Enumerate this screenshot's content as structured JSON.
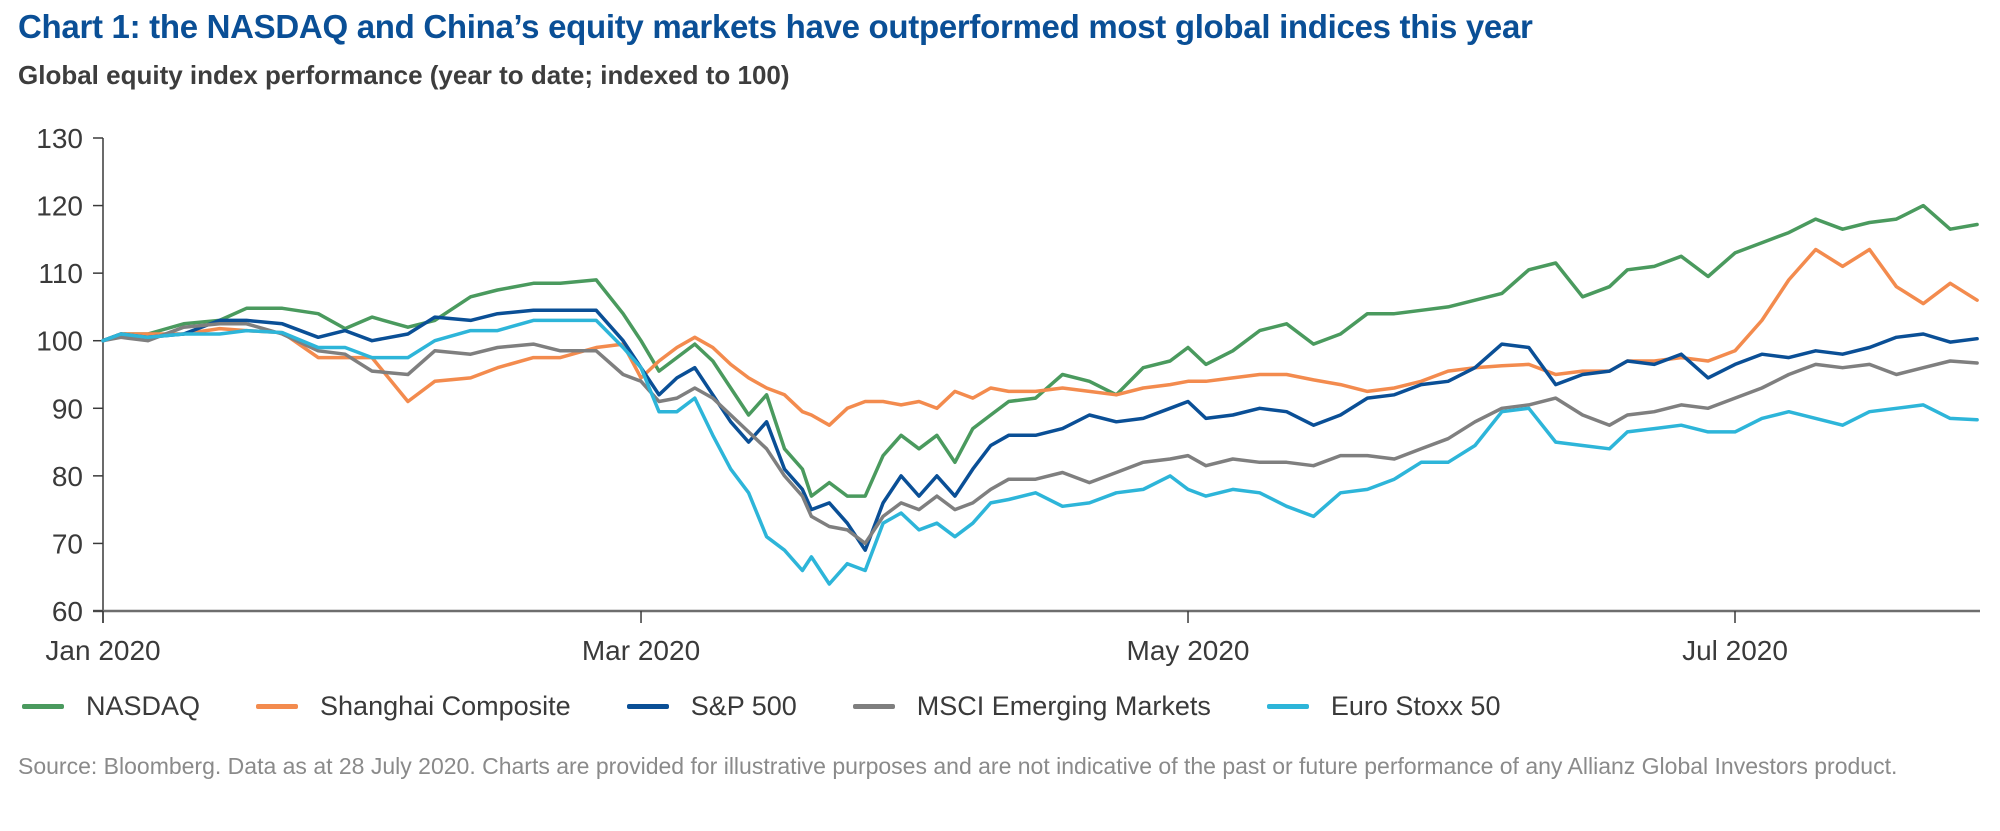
{
  "header": {
    "title": "Chart 1: the NASDAQ and China’s equity markets have outperformed most global indices this year",
    "subtitle": "Global equity index performance (year to date; indexed to 100)"
  },
  "footer": {
    "source": "Source: Bloomberg. Data as at 28 July 2020. Charts are provided for illustrative purposes and are not indicative of the past or future performance of any Allianz Global Investors product."
  },
  "chart_data": {
    "type": "line",
    "title": "Chart 1: the NASDAQ and China’s equity markets have outperformed most global indices this year",
    "subtitle": "Global equity index performance (year to date; indexed to 100)",
    "xlabel": "",
    "ylabel": "",
    "x_unit": "days since 1 Jan 2020",
    "xlim": [
      0,
      209
    ],
    "ylim": [
      60,
      130
    ],
    "yticks": [
      60,
      70,
      80,
      90,
      100,
      110,
      120,
      130
    ],
    "xticks": [
      {
        "day": 0,
        "label": "Jan 2020"
      },
      {
        "day": 60,
        "label": "Mar 2020"
      },
      {
        "day": 121,
        "label": "May 2020"
      },
      {
        "day": 182,
        "label": "Jul 2020"
      }
    ],
    "grid": false,
    "legend_position": "bottom",
    "x": [
      0,
      2,
      5,
      9,
      13,
      16,
      20,
      24,
      27,
      30,
      34,
      37,
      41,
      44,
      48,
      51,
      55,
      58,
      60,
      62,
      64,
      66,
      68,
      70,
      72,
      74,
      76,
      78,
      79,
      81,
      83,
      85,
      87,
      89,
      91,
      93,
      95,
      97,
      99,
      101,
      104,
      107,
      110,
      113,
      116,
      119,
      121,
      123,
      126,
      129,
      132,
      135,
      138,
      141,
      144,
      147,
      150,
      153,
      156,
      159,
      162,
      165,
      168,
      170,
      173,
      176,
      179,
      182,
      185,
      188,
      191,
      194,
      197,
      200,
      203,
      206,
      209
    ],
    "series": [
      {
        "name": "NASDAQ",
        "color": "#4a9a5e",
        "values": [
          100,
          101,
          101,
          102.5,
          103,
          104.8,
          104.8,
          104,
          101.8,
          103.5,
          102,
          103,
          106.5,
          107.5,
          108.5,
          108.5,
          109,
          104,
          100,
          95.5,
          97.5,
          99.5,
          97,
          93,
          89,
          92,
          84,
          81,
          77,
          79,
          77,
          77,
          83,
          86,
          84,
          86,
          82,
          87,
          89,
          91,
          91.5,
          95,
          94,
          92,
          96,
          97,
          99,
          96.5,
          98.5,
          101.5,
          102.5,
          99.5,
          101,
          104,
          104,
          104.5,
          105,
          106,
          107,
          110.5,
          111.5,
          106.5,
          108,
          110.5,
          111,
          112.5,
          109.5,
          113,
          114.5,
          116,
          118,
          116.5,
          117.5,
          118,
          120,
          116.5,
          117.2
        ]
      },
      {
        "name": "Shanghai Composite",
        "color": "#f38b4e",
        "values": [
          100,
          101,
          101,
          101,
          101.8,
          101.5,
          101.2,
          97.5,
          97.5,
          97.5,
          91,
          94,
          94.5,
          96,
          97.5,
          97.5,
          99,
          99.5,
          94.5,
          97,
          99,
          100.5,
          99,
          96.5,
          94.5,
          93,
          92,
          89.5,
          89,
          87.5,
          90,
          91,
          91,
          90.5,
          91,
          90,
          92.5,
          91.5,
          93,
          92.5,
          92.5,
          93,
          92.5,
          92,
          93,
          93.5,
          94,
          94,
          94.5,
          95,
          95,
          94.2,
          93.5,
          92.5,
          93,
          94,
          95.5,
          96,
          96.3,
          96.5,
          95,
          95.5,
          95.5,
          97,
          97,
          97.5,
          97,
          98.5,
          103,
          109,
          113.5,
          111,
          113.5,
          108,
          105.5,
          108.5,
          106
        ]
      },
      {
        "name": "S&P 500",
        "color": "#0a4f96",
        "values": [
          100,
          101,
          100.5,
          101,
          103,
          103,
          102.5,
          100.5,
          101.5,
          100,
          101,
          103.5,
          103,
          104,
          104.5,
          104.5,
          104.5,
          100,
          96,
          92,
          94.5,
          96,
          92,
          88,
          85,
          88,
          81,
          78,
          75,
          76,
          73,
          69,
          76,
          80,
          77,
          80,
          77,
          81,
          84.5,
          86,
          86,
          87,
          89,
          88,
          88.5,
          90,
          91,
          88.5,
          89,
          90,
          89.5,
          87.5,
          89,
          91.5,
          92,
          93.5,
          94,
          96,
          99.5,
          99,
          93.5,
          95,
          95.5,
          97,
          96.5,
          98,
          94.5,
          96.5,
          98,
          97.5,
          98.5,
          98,
          99,
          100.5,
          101,
          99.8,
          100.3
        ]
      },
      {
        "name": "MSCI Emerging Markets",
        "color": "#7f7f7f",
        "values": [
          100,
          100.5,
          100,
          102,
          102.5,
          102.5,
          101,
          98.5,
          98,
          95.5,
          95,
          98.5,
          98,
          99,
          99.5,
          98.5,
          98.5,
          95,
          94,
          91,
          91.5,
          93,
          91.5,
          89,
          86.5,
          84,
          80,
          77,
          74,
          72.5,
          72,
          70,
          74,
          76,
          75,
          77,
          75,
          76,
          78,
          79.5,
          79.5,
          80.5,
          79,
          80.5,
          82,
          82.5,
          83,
          81.5,
          82.5,
          82,
          82,
          81.5,
          83,
          83,
          82.5,
          84,
          85.5,
          88,
          90,
          90.5,
          91.5,
          89,
          87.5,
          89,
          89.5,
          90.5,
          90,
          91.5,
          93,
          95,
          96.5,
          96,
          96.5,
          95,
          96,
          97,
          96.7
        ]
      },
      {
        "name": "Euro Stoxx 50",
        "color": "#2db5d9",
        "values": [
          100,
          101,
          100.5,
          101,
          101,
          101.5,
          101.2,
          99,
          99,
          97.5,
          97.5,
          100,
          101.5,
          101.5,
          103,
          103,
          103,
          99,
          96,
          89.5,
          89.5,
          91.5,
          86,
          81,
          77.5,
          71,
          69,
          66,
          68,
          64,
          67,
          66,
          73,
          74.5,
          72,
          73,
          71,
          73,
          76,
          76.5,
          77.5,
          75.5,
          76,
          77.5,
          78,
          80,
          78,
          77,
          78,
          77.5,
          75.5,
          74,
          77.5,
          78,
          79.5,
          82,
          82,
          84.5,
          89.5,
          90,
          85,
          84.5,
          84,
          86.5,
          87,
          87.5,
          86.5,
          86.5,
          88.5,
          89.5,
          88.5,
          87.5,
          89.5,
          90,
          90.5,
          88.5,
          88.3
        ]
      }
    ]
  }
}
